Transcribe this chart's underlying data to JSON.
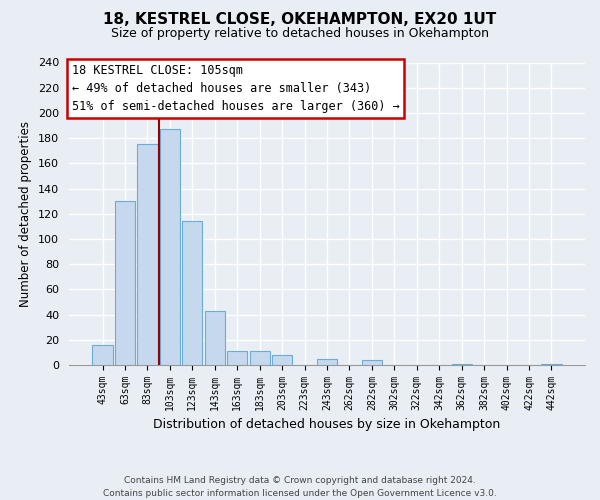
{
  "title": "18, KESTREL CLOSE, OKEHAMPTON, EX20 1UT",
  "subtitle": "Size of property relative to detached houses in Okehampton",
  "xlabel": "Distribution of detached houses by size in Okehampton",
  "ylabel": "Number of detached properties",
  "bar_labels": [
    "43sqm",
    "63sqm",
    "83sqm",
    "103sqm",
    "123sqm",
    "143sqm",
    "163sqm",
    "183sqm",
    "203sqm",
    "223sqm",
    "243sqm",
    "262sqm",
    "282sqm",
    "302sqm",
    "322sqm",
    "342sqm",
    "362sqm",
    "382sqm",
    "402sqm",
    "422sqm",
    "442sqm"
  ],
  "bar_values": [
    16,
    130,
    175,
    187,
    114,
    43,
    11,
    11,
    8,
    0,
    5,
    0,
    4,
    0,
    0,
    0,
    1,
    0,
    0,
    0,
    1
  ],
  "bar_color": "#c5d8ed",
  "bar_edge_color": "#6aaed6",
  "ylim": [
    0,
    240
  ],
  "yticks": [
    0,
    20,
    40,
    60,
    80,
    100,
    120,
    140,
    160,
    180,
    200,
    220,
    240
  ],
  "annotation_title": "18 KESTREL CLOSE: 105sqm",
  "annotation_line1": "← 49% of detached houses are smaller (343)",
  "annotation_line2": "51% of semi-detached houses are larger (360) →",
  "annotation_box_color": "#ffffff",
  "annotation_box_edge": "#cc0000",
  "footer_line1": "Contains HM Land Registry data © Crown copyright and database right 2024.",
  "footer_line2": "Contains public sector information licensed under the Open Government Licence v3.0.",
  "bg_color": "#e8eef4",
  "plot_bg_color": "#e8eef4",
  "grid_color": "#ffffff",
  "vline_color": "#990000",
  "vline_x": 2.5
}
